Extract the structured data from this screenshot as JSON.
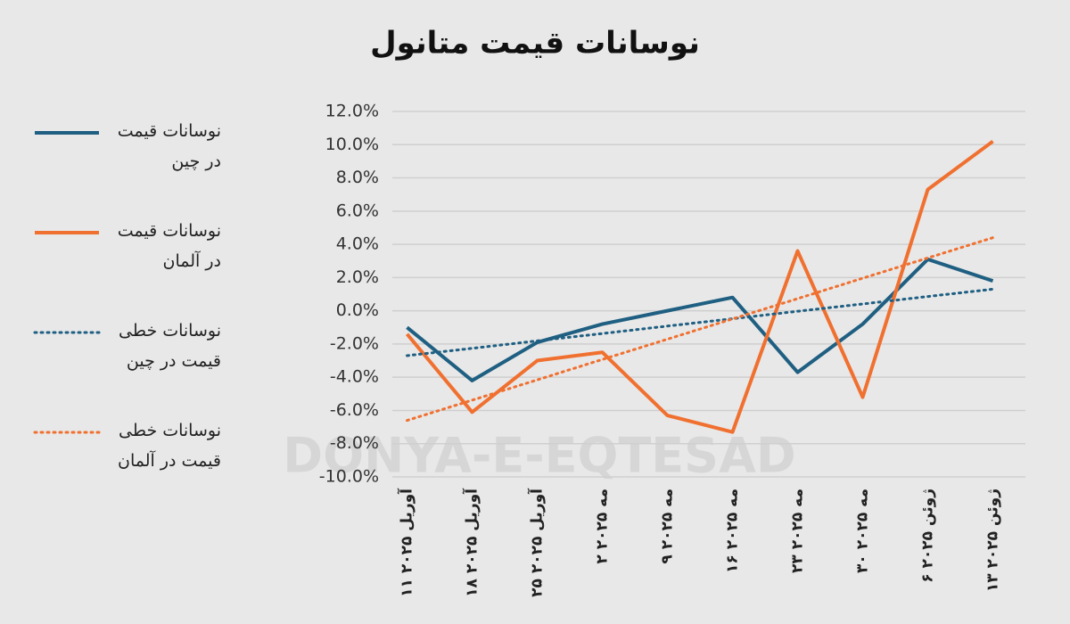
{
  "chart_data": {
    "type": "line",
    "title": "نوسانات قیمت متانول",
    "watermark": "DONYA-E-EQTESAD",
    "categories": [
      "۱۱ آوریل ۲۰۲۵",
      "۱۸ آوریل ۲۰۲۵",
      "۲۵ آوریل ۲۰۲۵",
      "۲ مه ۲۰۲۵",
      "۹ مه ۲۰۲۵",
      "۱۶ مه ۲۰۲۵",
      "۲۳ مه ۲۰۲۵",
      "۳۰ مه ۲۰۲۵",
      "۶ ژوئن ۲۰۲۵",
      "۱۳ ژوئن ۲۰۲۵"
    ],
    "series": [
      {
        "name": "نوسانات قیمت در چین",
        "color": "#1f5f82",
        "style": "solid",
        "values": [
          -1.0,
          -4.2,
          -1.9,
          -0.8,
          0.0,
          0.8,
          -3.7,
          -0.8,
          3.1,
          1.8
        ]
      },
      {
        "name": "نوسانات قیمت در آلمان",
        "color": "#f07030",
        "style": "solid",
        "values": [
          -1.4,
          -6.1,
          -3.0,
          -2.5,
          -6.3,
          -7.3,
          3.6,
          -5.2,
          7.3,
          10.2
        ]
      },
      {
        "name": "نوسانات خطی قیمت در چین",
        "color": "#1f5f82",
        "style": "dotted",
        "values": [
          -2.7,
          -2.26,
          -1.81,
          -1.37,
          -0.92,
          -0.48,
          -0.03,
          0.41,
          0.86,
          1.3
        ]
      },
      {
        "name": "نوسانات خطی قیمت در آلمان",
        "color": "#f07030",
        "style": "dotted",
        "values": [
          -6.6,
          -5.38,
          -4.16,
          -2.93,
          -1.71,
          -0.49,
          0.73,
          1.96,
          3.18,
          4.4
        ]
      }
    ],
    "ylim": [
      -10,
      12
    ],
    "yticks": [
      {
        "value": -10,
        "label": "-10.0%"
      },
      {
        "value": -8,
        "label": "-8.0%"
      },
      {
        "value": -6,
        "label": "-6.0%"
      },
      {
        "value": -4,
        "label": "-4.0%"
      },
      {
        "value": -2,
        "label": "-2.0%"
      },
      {
        "value": 0,
        "label": "0.0%"
      },
      {
        "value": 2,
        "label": "2.0%"
      },
      {
        "value": 4,
        "label": "4.0%"
      },
      {
        "value": 6,
        "label": "6.0%"
      },
      {
        "value": 8,
        "label": "8.0%"
      },
      {
        "value": 10,
        "label": "10.0%"
      },
      {
        "value": 12,
        "label": "12.0%"
      }
    ],
    "grid": true
  }
}
